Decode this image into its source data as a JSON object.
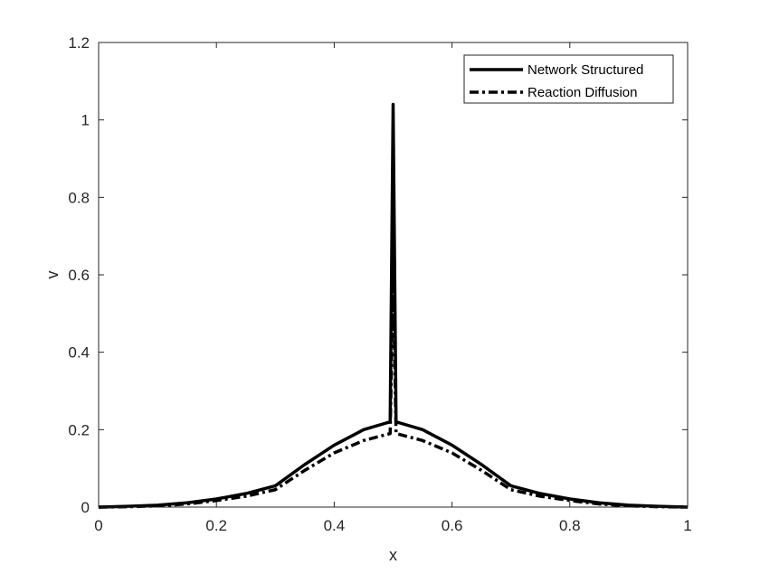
{
  "chart_data": {
    "type": "line",
    "title": "",
    "xlabel": "x",
    "ylabel": "v",
    "xlim": [
      0,
      1
    ],
    "ylim": [
      0,
      1.2
    ],
    "xticks": [
      0,
      0.2,
      0.4,
      0.6,
      0.8,
      1
    ],
    "yticks": [
      0,
      0.2,
      0.4,
      0.6,
      0.8,
      1,
      1.2
    ],
    "xtick_labels": [
      "0",
      "0.2",
      "0.4",
      "0.6",
      "0.8",
      "1"
    ],
    "ytick_labels": [
      "0",
      "0.2",
      "0.4",
      "0.6",
      "0.8",
      "1",
      "1.2"
    ],
    "grid": false,
    "box": true,
    "legend_position": "top-right",
    "series": [
      {
        "name": "Network Structured",
        "line_style": "solid",
        "color": "#000000",
        "x": [
          0,
          0.05,
          0.1,
          0.15,
          0.2,
          0.25,
          0.3,
          0.35,
          0.4,
          0.45,
          0.49,
          0.495,
          0.5,
          0.505,
          0.51,
          0.55,
          0.6,
          0.65,
          0.7,
          0.75,
          0.8,
          0.85,
          0.9,
          0.95,
          1
        ],
        "y": [
          0.0,
          0.002,
          0.005,
          0.011,
          0.021,
          0.035,
          0.055,
          0.11,
          0.16,
          0.2,
          0.218,
          0.22,
          1.04,
          0.22,
          0.218,
          0.2,
          0.16,
          0.11,
          0.055,
          0.035,
          0.021,
          0.011,
          0.005,
          0.002,
          0.0
        ]
      },
      {
        "name": "Reaction Diffusion",
        "line_style": "dashdot",
        "color": "#000000",
        "x": [
          0,
          0.05,
          0.1,
          0.15,
          0.2,
          0.25,
          0.3,
          0.35,
          0.4,
          0.45,
          0.49,
          0.495,
          0.5,
          0.505,
          0.51,
          0.55,
          0.6,
          0.65,
          0.7,
          0.75,
          0.8,
          0.85,
          0.9,
          0.95,
          1
        ],
        "y": [
          0.0,
          0.001,
          0.003,
          0.008,
          0.017,
          0.028,
          0.045,
          0.095,
          0.14,
          0.172,
          0.188,
          0.19,
          0.6,
          0.19,
          0.188,
          0.172,
          0.14,
          0.095,
          0.045,
          0.028,
          0.017,
          0.008,
          0.003,
          0.001,
          0.0
        ]
      }
    ]
  }
}
